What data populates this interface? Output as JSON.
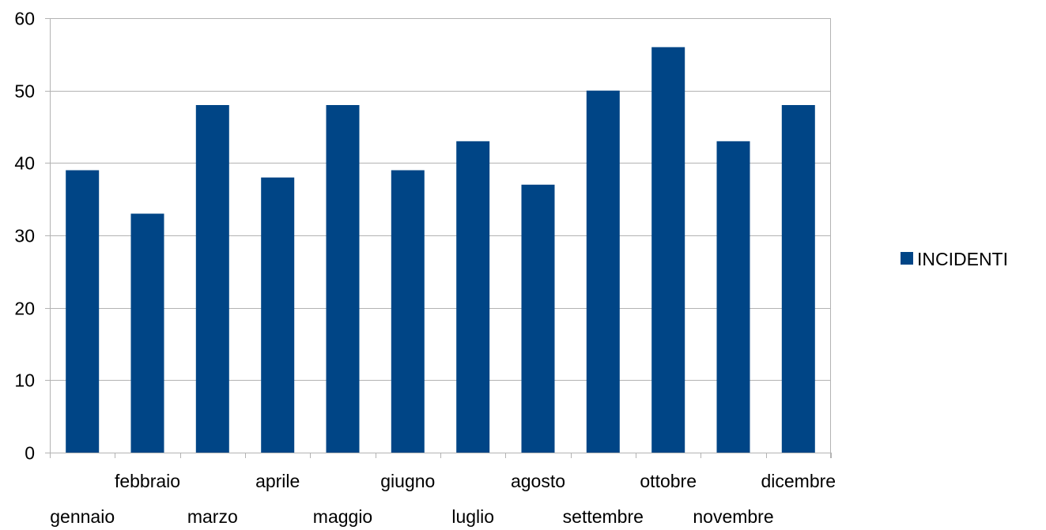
{
  "chart_data": {
    "type": "bar",
    "categories": [
      "gennaio",
      "febbraio",
      "marzo",
      "aprile",
      "maggio",
      "giugno",
      "luglio",
      "agosto",
      "settembre",
      "ottobre",
      "novembre",
      "dicembre"
    ],
    "series": [
      {
        "name": "INCIDENTI",
        "values": [
          39,
          33,
          48,
          38,
          48,
          39,
          43,
          37,
          50,
          56,
          43,
          48
        ]
      }
    ],
    "ylim": [
      0,
      60
    ],
    "yticks": [
      0,
      10,
      20,
      30,
      40,
      50,
      60
    ],
    "grid": true,
    "legend_position": "right",
    "colors": {
      "bar": "#004586",
      "grid": "#b3b3b3",
      "axis": "#b3b3b3"
    }
  }
}
